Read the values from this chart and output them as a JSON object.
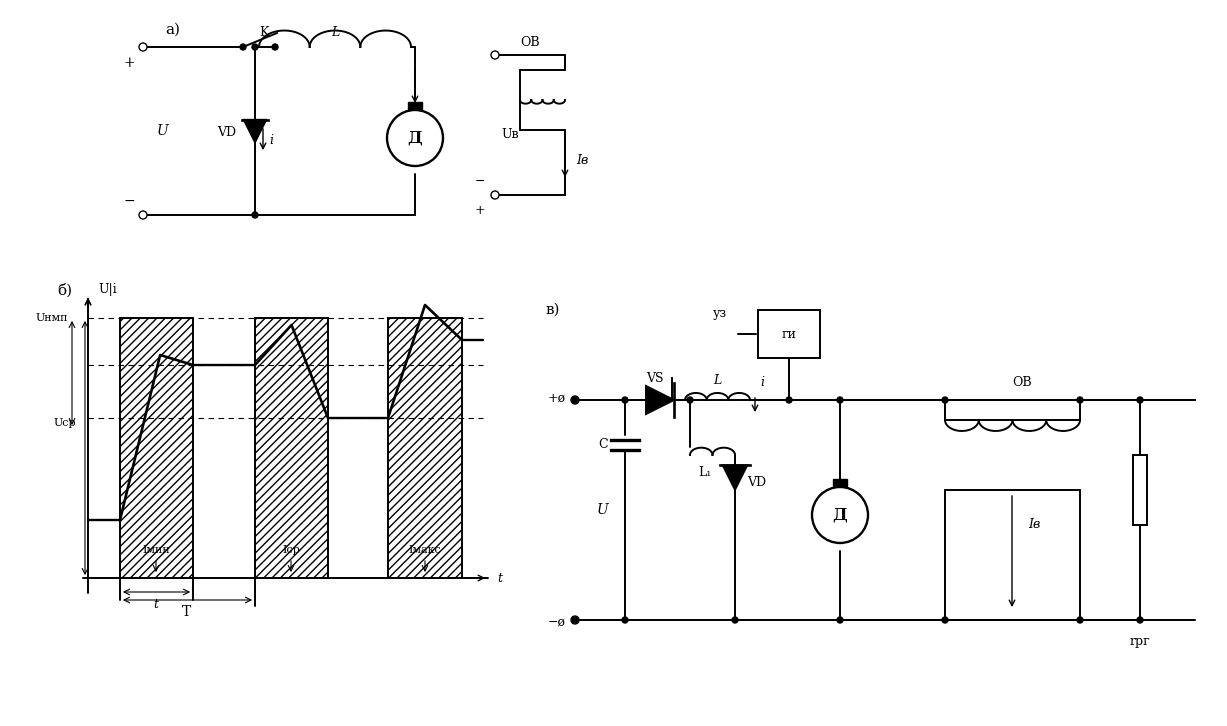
{
  "bg_color": "#ffffff",
  "fig_width": 12.27,
  "fig_height": 7.26,
  "dpi": 100,
  "lw": 1.4,
  "labels": {
    "a": "а)",
    "b": "б)",
    "v": "в)",
    "K": "K",
    "L_a": "L",
    "VD_a": "VD",
    "i_a": "i",
    "D_a": "Д",
    "U_a": "U",
    "plus_a": "+",
    "minus_a": "−",
    "OV_a": "ОВ",
    "Ib_a": "Iв",
    "Ub_a": "Uв",
    "Ui": "U|i",
    "Unmp": "Uнмп",
    "Ucp": "Uср",
    "Imin": "Iмин",
    "Iср": "Iср",
    "Imax": "Iмакс",
    "t_small": "t",
    "T_big": "T",
    "t_axis": "t",
    "УЗ": "уз",
    "ГИ": "ги",
    "VS": "VS",
    "C": "C",
    "L1": "L₁",
    "VD_v": "VD",
    "L_v": "L",
    "i_v": "i",
    "D_v": "Д",
    "OV_v": "ОВ",
    "Ib_v": "Iв",
    "rpr": "rрг",
    "U_v": "U",
    "plusQ": "+ø",
    "minusQ": "−ø"
  }
}
